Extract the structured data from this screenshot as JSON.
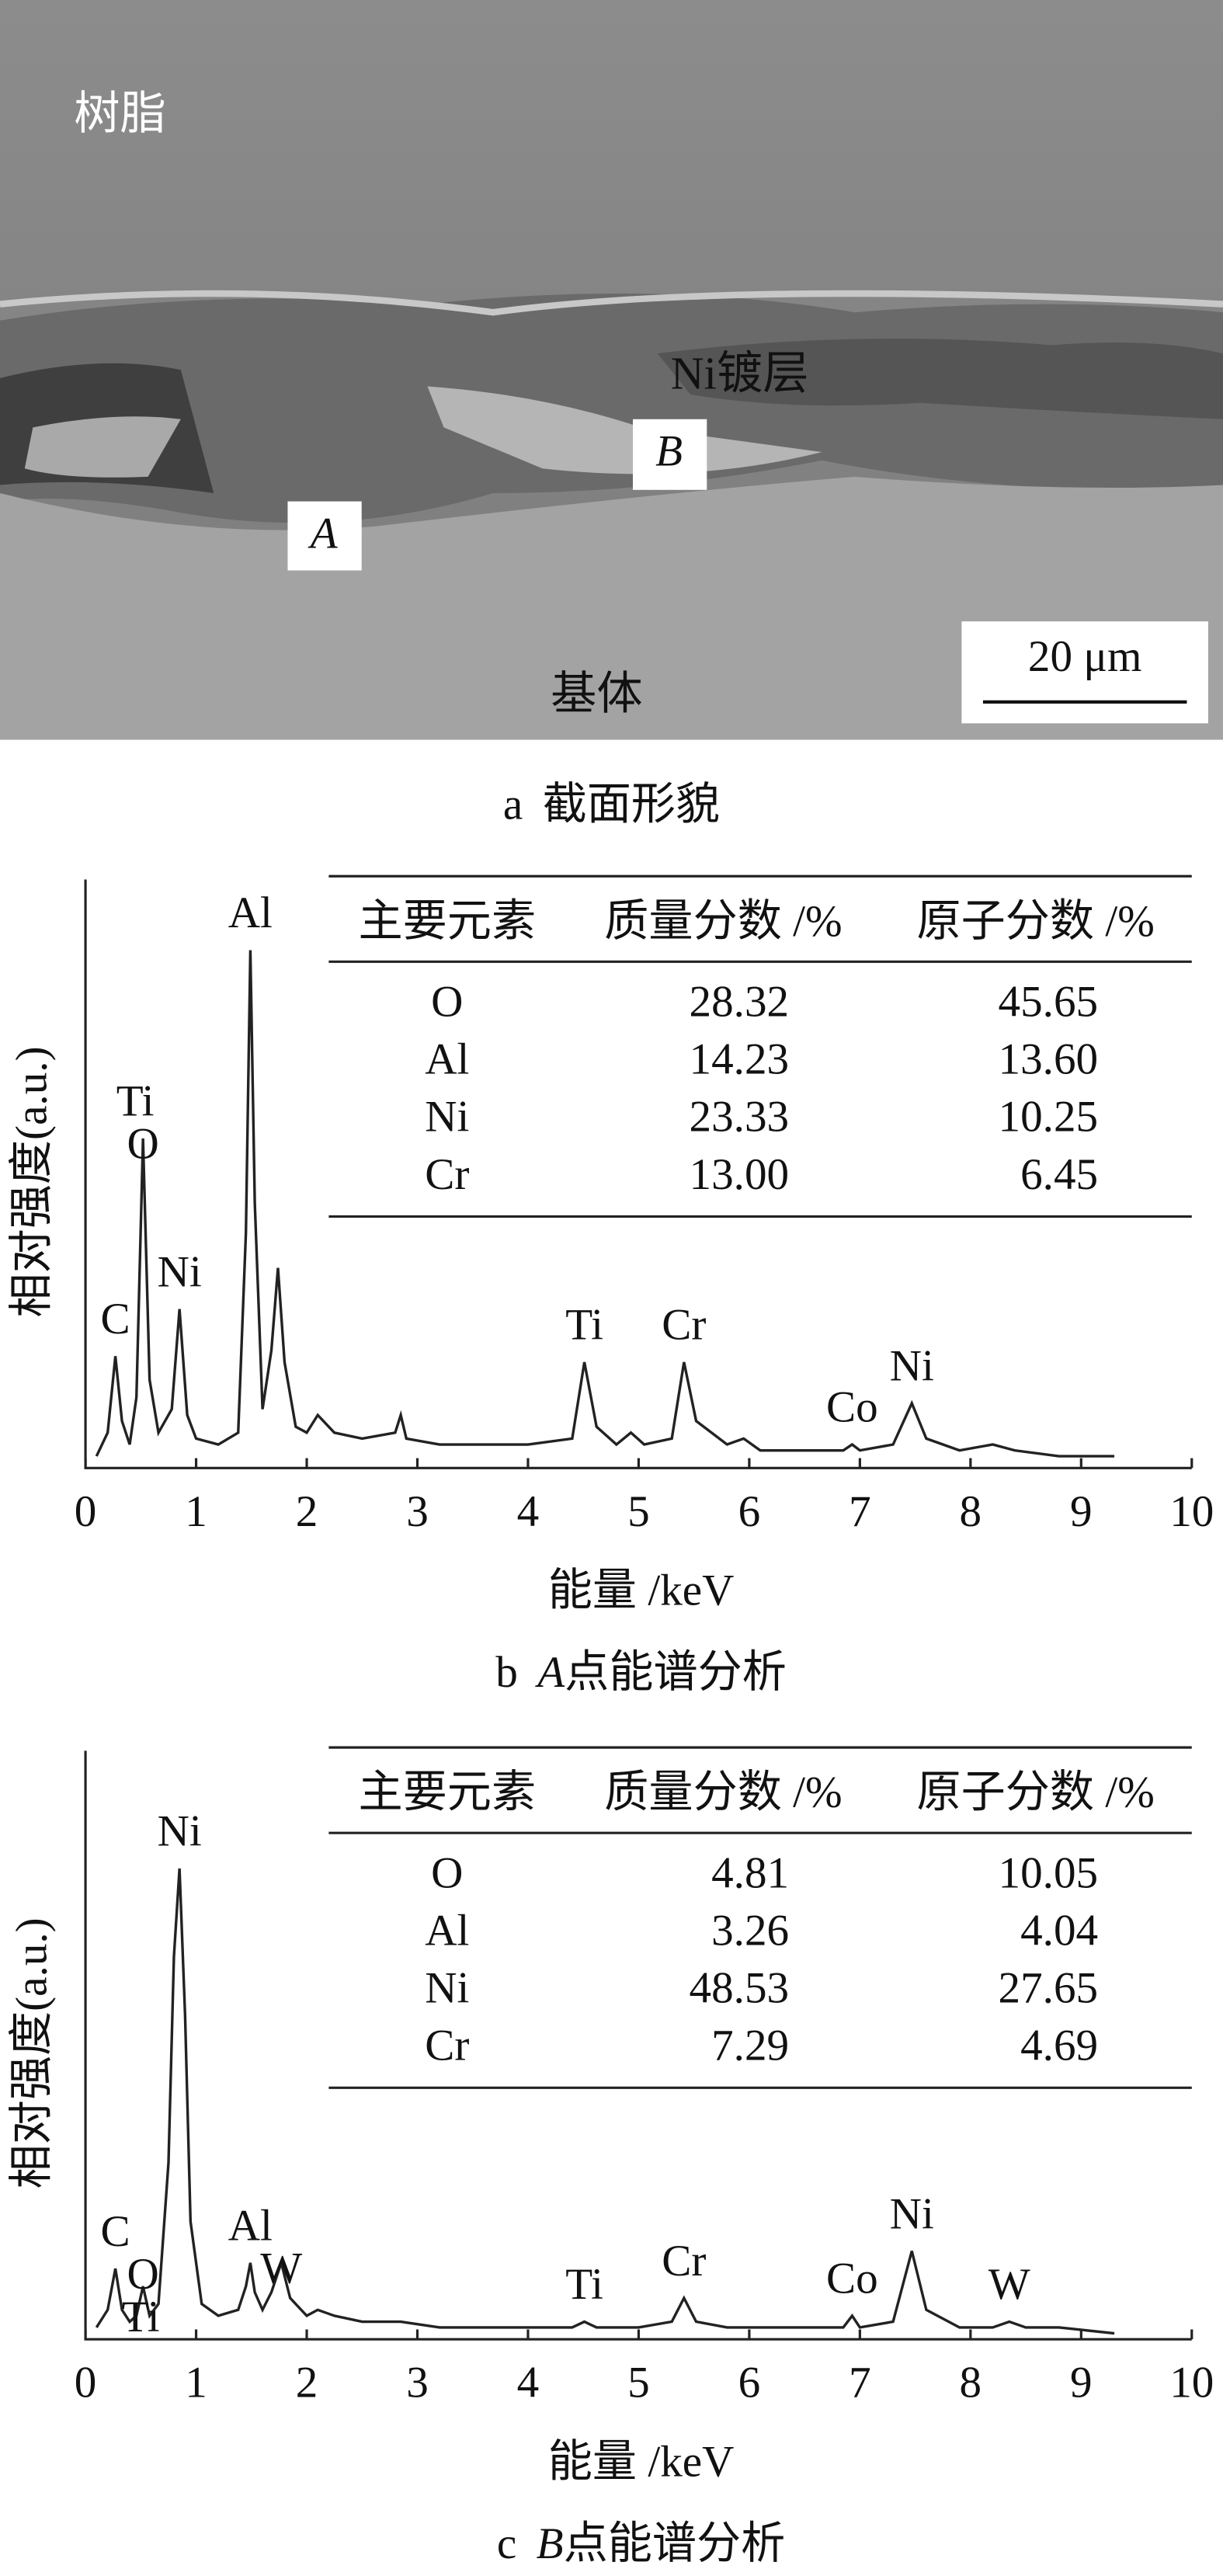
{
  "figure_a": {
    "labels": {
      "resin": "树脂",
      "coating": "Ni镀层",
      "point_b": "B",
      "point_a": "A",
      "substrate": "基体",
      "scale": "20 μm"
    },
    "caption": {
      "letter": "a",
      "text": "截面形貌"
    }
  },
  "chart_data": [
    {
      "type": "line",
      "caption": {
        "letter": "b",
        "point": "A",
        "text": "点能谱分析"
      },
      "x_label": "能量 /keV",
      "y_label": "相对强度(a.u.)",
      "xlim": [
        0,
        10
      ],
      "xticks": [
        0,
        1,
        2,
        3,
        4,
        5,
        6,
        7,
        8,
        9,
        10
      ],
      "ylim": [
        0,
        100
      ],
      "color": "#222",
      "x": [
        0.1,
        0.2,
        0.27,
        0.33,
        0.4,
        0.46,
        0.52,
        0.58,
        0.66,
        0.78,
        0.85,
        0.92,
        1.0,
        1.2,
        1.38,
        1.45,
        1.49,
        1.53,
        1.6,
        1.68,
        1.74,
        1.8,
        1.9,
        2.0,
        2.1,
        2.25,
        2.5,
        2.8,
        2.85,
        2.9,
        3.2,
        3.6,
        4.0,
        4.4,
        4.51,
        4.62,
        4.8,
        4.93,
        5.05,
        5.3,
        5.41,
        5.52,
        5.8,
        5.95,
        6.1,
        6.5,
        6.85,
        6.93,
        7.0,
        7.3,
        7.47,
        7.6,
        7.9,
        8.2,
        8.4,
        8.8,
        9.3
      ],
      "values": [
        2,
        6,
        19,
        8,
        4,
        12,
        56,
        15,
        6,
        10,
        27,
        9,
        5,
        4,
        6,
        40,
        88,
        45,
        10,
        20,
        34,
        18,
        7,
        6,
        9,
        6,
        5,
        6,
        9,
        5,
        4,
        4,
        4,
        5,
        18,
        7,
        4,
        6,
        4,
        5,
        18,
        8,
        4,
        5,
        3,
        3,
        3,
        4,
        3,
        4,
        11,
        5,
        3,
        4,
        3,
        2,
        2
      ],
      "annotations": [
        {
          "text": "C",
          "x": 0.27
        },
        {
          "text": "Ti",
          "x": 0.45
        },
        {
          "text": "O",
          "x": 0.52
        },
        {
          "text": "Ni",
          "x": 0.85
        },
        {
          "text": "Al",
          "x": 1.49
        },
        {
          "text": "Ti",
          "x": 4.51
        },
        {
          "text": "Cr",
          "x": 5.41
        },
        {
          "text": "Co",
          "x": 6.93
        },
        {
          "text": "Ni",
          "x": 7.47
        }
      ],
      "table": {
        "header": [
          "主要元素",
          "质量分数 /%",
          "原子分数 /%"
        ],
        "rows": [
          [
            "O",
            "28.32",
            "45.65"
          ],
          [
            "Al",
            "14.23",
            "13.60"
          ],
          [
            "Ni",
            "23.33",
            "10.25"
          ],
          [
            "Cr",
            "13.00",
            "6.45"
          ]
        ]
      }
    },
    {
      "type": "line",
      "caption": {
        "letter": "c",
        "point": "B",
        "text": "点能谱分析"
      },
      "x_label": "能量 /keV",
      "y_label": "相对强度(a.u.)",
      "xlim": [
        0,
        10
      ],
      "xticks": [
        0,
        1,
        2,
        3,
        4,
        5,
        6,
        7,
        8,
        9,
        10
      ],
      "ylim": [
        0,
        100
      ],
      "color": "#222",
      "x": [
        0.1,
        0.2,
        0.27,
        0.33,
        0.4,
        0.46,
        0.52,
        0.58,
        0.66,
        0.75,
        0.8,
        0.85,
        0.9,
        0.95,
        1.05,
        1.2,
        1.38,
        1.45,
        1.49,
        1.53,
        1.6,
        1.68,
        1.77,
        1.85,
        2.0,
        2.1,
        2.25,
        2.5,
        2.85,
        3.2,
        3.6,
        4.0,
        4.4,
        4.51,
        4.62,
        5.0,
        5.3,
        5.41,
        5.52,
        5.8,
        6.1,
        6.5,
        6.85,
        6.93,
        7.0,
        7.3,
        7.47,
        7.6,
        7.9,
        8.2,
        8.35,
        8.5,
        8.8,
        9.3
      ],
      "values": [
        2,
        5,
        12,
        5,
        3,
        4,
        9,
        4,
        6,
        30,
        65,
        80,
        55,
        20,
        6,
        4,
        5,
        9,
        13,
        8,
        5,
        8,
        13,
        7,
        4,
        5,
        4,
        3,
        3,
        2,
        2,
        2,
        2,
        3,
        2,
        2,
        3,
        7,
        3,
        2,
        2,
        2,
        2,
        4,
        2,
        3,
        15,
        5,
        2,
        2,
        3,
        2,
        2,
        1
      ],
      "annotations": [
        {
          "text": "C",
          "x": 0.27
        },
        {
          "text": "O",
          "x": 0.52
        },
        {
          "text": "Ti",
          "x": 0.5
        },
        {
          "text": "Ni",
          "x": 0.85
        },
        {
          "text": "Al",
          "x": 1.49
        },
        {
          "text": "W",
          "x": 1.77
        },
        {
          "text": "Ti",
          "x": 4.51
        },
        {
          "text": "Cr",
          "x": 5.41
        },
        {
          "text": "Co",
          "x": 6.93
        },
        {
          "text": "Ni",
          "x": 7.47
        },
        {
          "text": "W",
          "x": 8.35
        }
      ],
      "table": {
        "header": [
          "主要元素",
          "质量分数 /%",
          "原子分数 /%"
        ],
        "rows": [
          [
            "O",
            "4.81",
            "10.05"
          ],
          [
            "Al",
            "3.26",
            "4.04"
          ],
          [
            "Ni",
            "48.53",
            "27.65"
          ],
          [
            "Cr",
            "7.29",
            "4.69"
          ]
        ]
      }
    }
  ]
}
